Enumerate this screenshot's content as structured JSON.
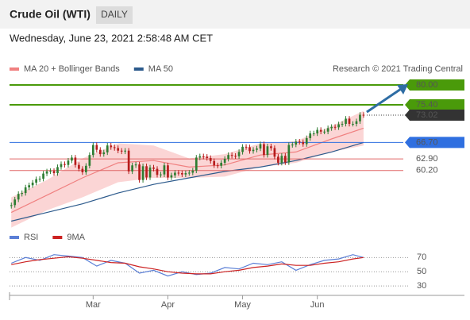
{
  "header": {
    "title": "Crude Oil (WTI)",
    "interval": "DAILY",
    "timestamp": "Wednesday, June 23, 2021 2:58:48 AM CET"
  },
  "chart_data": [
    {
      "type": "candlestick",
      "copyright": "Research © 2021 Trading Central",
      "xlim": [
        -0.5,
        109.5
      ],
      "ylim": [
        47.3,
        82.2
      ],
      "xticks": [
        {
          "value": 23,
          "label": "Mar"
        },
        {
          "value": 44,
          "label": "Apr"
        },
        {
          "value": 65,
          "label": "May"
        },
        {
          "value": 86,
          "label": "Jun"
        }
      ],
      "up_color": "#2e7d32",
      "down_color": "#b71c1c",
      "open": [
        52.0,
        52.2,
        53.5,
        54.8,
        55.0,
        56.3,
        56.8,
        57.4,
        58.2,
        58.3,
        59.5,
        60.0,
        60.1,
        59.6,
        61.0,
        61.7,
        61.5,
        62.5,
        63.2,
        61.5,
        60.6,
        59.8,
        61.3,
        63.8,
        66.1,
        65.0,
        64.0,
        64.4,
        66.0,
        65.6,
        65.4,
        64.8,
        64.6,
        64.8,
        60.0,
        61.4,
        61.6,
        58.0,
        61.2,
        58.6,
        60.9,
        60.6,
        59.2,
        59.3,
        61.4,
        58.6,
        59.1,
        59.7,
        59.6,
        59.3,
        59.6,
        59.7,
        60.2,
        63.2,
        63.5,
        63.4,
        63.1,
        62.4,
        61.4,
        61.3,
        62.0,
        62.9,
        63.8,
        63.6,
        63.5,
        64.5,
        65.7,
        65.6,
        64.7,
        65.0,
        65.3,
        66.3,
        63.8,
        65.8,
        65.4,
        63.4,
        62.0,
        63.6,
        62.1,
        66.1,
        66.2,
        66.9,
        66.8,
        66.3,
        67.7,
        68.8,
        68.8,
        69.6,
        69.2,
        69.2,
        70.0,
        70.3,
        70.2,
        70.9,
        71.0,
        72.2,
        71.0,
        71.0,
        71.6,
        73.1
      ],
      "high": [
        52.8,
        54.1,
        55.4,
        55.6,
        56.9,
        57.4,
        58.0,
        58.8,
        58.9,
        60.1,
        60.6,
        60.7,
        60.7,
        61.6,
        62.3,
        62.3,
        63.1,
        63.8,
        63.8,
        62.1,
        61.2,
        61.9,
        64.4,
        66.7,
        66.7,
        65.6,
        65.0,
        66.6,
        66.6,
        66.2,
        66.0,
        65.4,
        65.4,
        65.4,
        62.0,
        62.2,
        62.2,
        61.8,
        61.8,
        61.5,
        61.5,
        61.2,
        59.9,
        62.0,
        62.0,
        59.7,
        60.3,
        60.3,
        60.2,
        60.2,
        60.3,
        60.8,
        63.8,
        64.1,
        64.1,
        64.0,
        63.7,
        63.0,
        62.0,
        62.6,
        63.5,
        64.4,
        64.4,
        64.2,
        65.1,
        66.3,
        66.3,
        66.2,
        65.6,
        65.9,
        66.9,
        66.9,
        66.4,
        66.4,
        66.0,
        64.0,
        64.2,
        64.2,
        66.7,
        66.8,
        67.5,
        67.5,
        67.4,
        68.3,
        69.4,
        69.4,
        70.2,
        70.2,
        69.8,
        70.6,
        70.9,
        70.9,
        71.5,
        71.6,
        72.8,
        72.8,
        71.6,
        72.2,
        73.7,
        73.7
      ],
      "low": [
        51.4,
        51.6,
        52.9,
        54.2,
        54.4,
        55.7,
        56.2,
        56.8,
        57.6,
        57.7,
        58.9,
        59.4,
        59.0,
        59.0,
        60.4,
        60.9,
        60.9,
        61.9,
        60.9,
        60.0,
        59.2,
        59.2,
        60.7,
        63.2,
        64.4,
        63.4,
        63.4,
        63.8,
        65.0,
        64.8,
        64.2,
        64.0,
        64.0,
        59.4,
        59.4,
        60.8,
        57.4,
        57.4,
        58.0,
        58.0,
        60.0,
        58.6,
        58.6,
        58.7,
        58.0,
        58.0,
        58.5,
        59.0,
        58.7,
        58.7,
        59.0,
        59.1,
        59.6,
        62.6,
        62.8,
        62.5,
        61.8,
        60.8,
        60.7,
        60.7,
        61.4,
        62.3,
        63.0,
        62.9,
        62.9,
        63.9,
        65.0,
        64.1,
        64.1,
        64.4,
        64.7,
        63.2,
        63.2,
        64.8,
        62.8,
        61.4,
        61.4,
        61.5,
        61.5,
        65.5,
        65.6,
        66.2,
        65.7,
        65.7,
        67.1,
        68.2,
        68.2,
        68.6,
        68.6,
        68.6,
        69.4,
        69.6,
        69.6,
        70.3,
        70.4,
        70.4,
        70.4,
        70.4,
        71.0,
        72.4
      ],
      "close": [
        52.2,
        53.5,
        54.8,
        55.0,
        56.3,
        56.8,
        57.4,
        58.2,
        58.3,
        59.5,
        60.0,
        60.1,
        59.6,
        61.0,
        61.7,
        61.5,
        62.5,
        63.2,
        61.5,
        60.6,
        59.8,
        61.3,
        63.8,
        66.1,
        65.0,
        64.0,
        64.4,
        66.0,
        65.6,
        65.4,
        64.8,
        64.6,
        64.8,
        60.0,
        61.4,
        61.6,
        58.0,
        61.2,
        58.6,
        60.9,
        60.6,
        59.2,
        59.3,
        61.4,
        58.6,
        59.1,
        59.7,
        59.6,
        59.3,
        59.6,
        59.7,
        60.2,
        63.2,
        63.5,
        63.4,
        63.1,
        62.4,
        61.4,
        61.3,
        62.0,
        62.9,
        63.8,
        63.6,
        63.5,
        64.5,
        65.7,
        65.6,
        64.7,
        65.0,
        65.3,
        66.3,
        63.8,
        65.8,
        65.4,
        63.4,
        62.0,
        63.6,
        62.1,
        66.1,
        66.2,
        66.9,
        66.8,
        66.3,
        67.7,
        68.8,
        68.8,
        69.6,
        69.2,
        69.2,
        70.0,
        70.3,
        70.2,
        70.9,
        71.0,
        72.2,
        71.0,
        71.0,
        71.6,
        73.1,
        73.0
      ],
      "series": [
        {
          "name": "MA 20 + Bollinger Bands",
          "color": "#f08080",
          "band_color": "#fbd5d5",
          "x": [
            0,
            10,
            20,
            30,
            40,
            50,
            60,
            70,
            80,
            90,
            99
          ],
          "values": [
            50.5,
            54.5,
            58.5,
            62.0,
            62.5,
            61.0,
            61.5,
            63.8,
            64.5,
            67.5,
            70.0
          ],
          "upper": [
            54,
            58,
            63,
            66.5,
            66,
            63,
            64,
            66.5,
            67,
            70.5,
            74
          ],
          "lower": [
            47,
            51,
            54,
            57.5,
            58.5,
            58.5,
            58.8,
            61,
            62,
            64.5,
            66
          ]
        },
        {
          "name": "MA 50",
          "color": "#2c5a8c",
          "x": [
            0,
            10,
            20,
            30,
            40,
            50,
            60,
            70,
            80,
            90,
            99
          ],
          "values": [
            48.5,
            50.5,
            52.5,
            55,
            57,
            58.5,
            60,
            61,
            62.5,
            64.5,
            66.7
          ]
        }
      ],
      "levels": [
        {
          "value": 80,
          "label": "80.00",
          "color": "#4a9a0a",
          "style": "box"
        },
        {
          "value": 75.4,
          "label": "75.40",
          "color": "#4a9a0a",
          "style": "box"
        },
        {
          "value": 73.02,
          "label": "73.02",
          "color": "#333333",
          "style": "dotted-box"
        },
        {
          "value": 66.7,
          "label": "66.70",
          "color": "#2f6fe0",
          "style": "box"
        },
        {
          "value": 62.9,
          "label": "62.90",
          "color": "#e06666",
          "style": "text"
        },
        {
          "value": 60.2,
          "label": "60.20",
          "color": "#e06666",
          "style": "text"
        }
      ]
    },
    {
      "type": "line",
      "xlim": [
        -0.5,
        109.5
      ],
      "ylim": [
        19,
        86
      ],
      "yticks": [
        30,
        50,
        70
      ],
      "grid": true,
      "series": [
        {
          "name": "RSI",
          "color": "#5b7fd6",
          "x": [
            0,
            4,
            8,
            12,
            16,
            20,
            24,
            28,
            32,
            36,
            40,
            44,
            48,
            52,
            56,
            60,
            64,
            68,
            72,
            76,
            80,
            84,
            88,
            92,
            96,
            99
          ],
          "values": [
            62,
            70,
            66,
            74,
            72,
            70,
            58,
            66,
            62,
            48,
            52,
            44,
            50,
            46,
            48,
            56,
            54,
            62,
            60,
            64,
            52,
            60,
            66,
            68,
            74,
            70
          ]
        },
        {
          "name": "9MA",
          "color": "#cc2222",
          "x": [
            0,
            4,
            8,
            12,
            16,
            20,
            24,
            28,
            32,
            36,
            40,
            44,
            48,
            52,
            56,
            60,
            64,
            68,
            72,
            76,
            80,
            84,
            88,
            92,
            96,
            99
          ],
          "values": [
            60,
            64,
            67,
            69,
            71,
            69,
            66,
            63,
            62,
            57,
            54,
            50,
            48,
            47,
            47,
            50,
            52,
            56,
            58,
            61,
            59,
            59,
            62,
            64,
            68,
            70
          ]
        }
      ]
    }
  ]
}
